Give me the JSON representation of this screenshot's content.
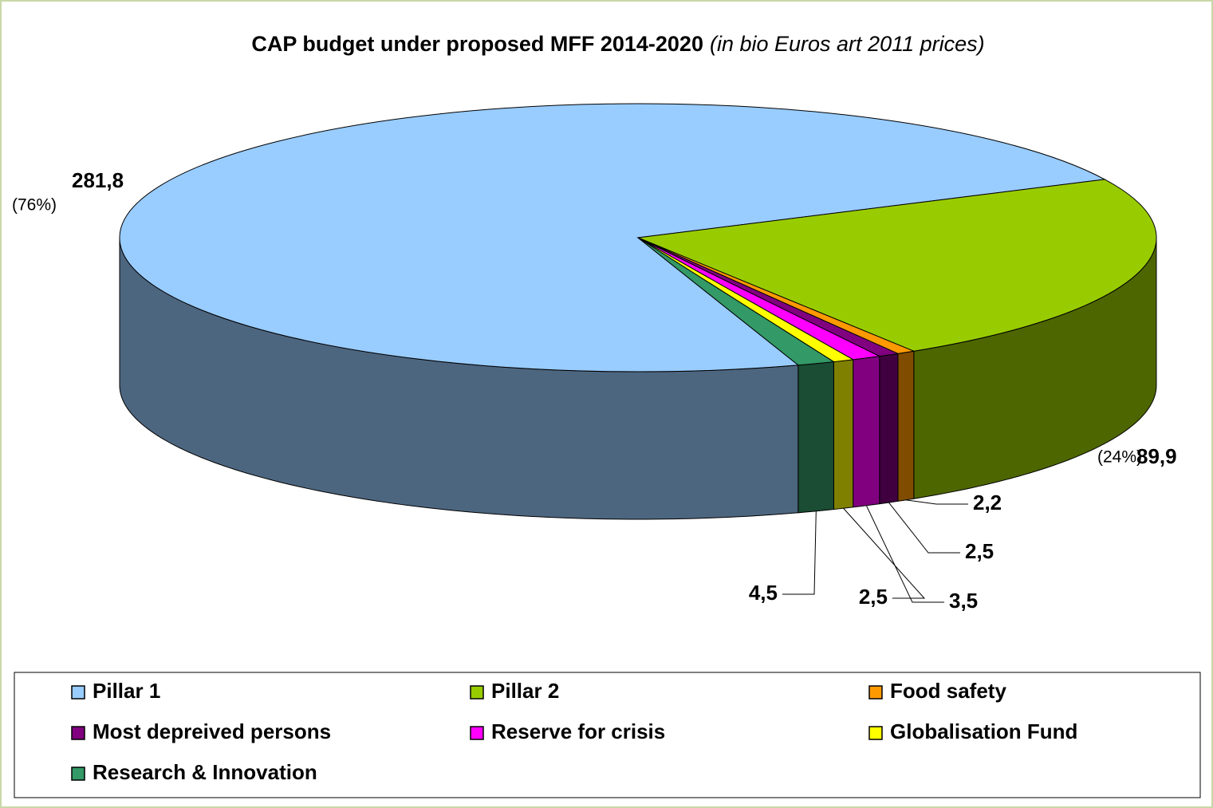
{
  "chart_data": {
    "type": "pie3d",
    "title": "CAP budget under proposed MFF 2014-2020",
    "subtitle": "(in bio Euros art 2011 prices)",
    "categories": [
      "Pillar 1",
      "Pillar 2",
      "Food safety",
      "Most depreived persons",
      "Reserve for crisis",
      "Globalisation Fund",
      "Research & Innovation"
    ],
    "values": [
      281.8,
      89.9,
      2.2,
      2.5,
      3.5,
      2.5,
      4.5
    ],
    "value_labels": [
      "281,8",
      "89,9",
      "2,2",
      "2,5",
      "3,5",
      "2,5",
      "4,5"
    ],
    "percent_labels": [
      "(76%)",
      "(24%)",
      null,
      null,
      null,
      null,
      null
    ],
    "colors": [
      "#99ccff",
      "#99cc00",
      "#ff9900",
      "#800080",
      "#ff00ff",
      "#ffff00",
      "#339966"
    ],
    "legend": "bottom"
  }
}
